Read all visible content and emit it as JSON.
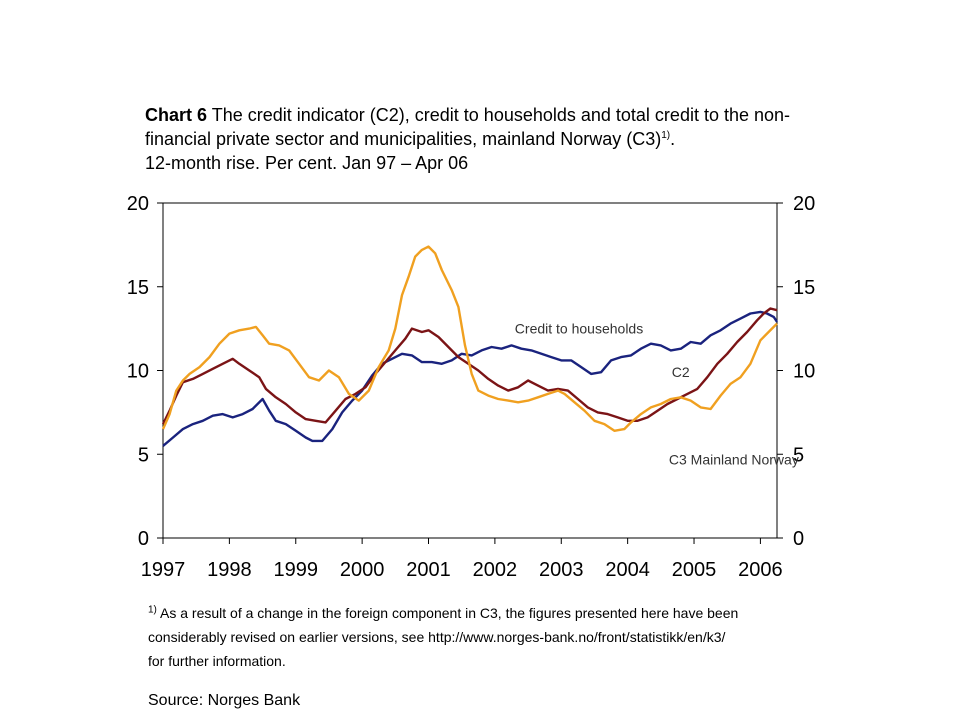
{
  "header": {
    "chart_number": "Chart 6",
    "title_line1": "The credit indicator (C2), credit to households and total credit to the non-",
    "title_line2": "financial private sector and municipalities, mainland Norway (C3)",
    "title_line2_sup": "1)",
    "title_line2_end": ".",
    "subtitle": "12-month rise. Per cent.  Jan 97 – Apr 06"
  },
  "footnote": {
    "marker": "1)",
    "line1": " As a result of a change in the foreign component in C3, the figures presented here have been",
    "line2": "considerably revised on earlier versions, see http://www.norges-bank.no/front/statistikk/en/k3/",
    "line3": "for further information."
  },
  "source": "Source: Norges Bank",
  "colors": {
    "households": "#1a237e",
    "c2": "#7b1416",
    "c3": "#f0a020"
  },
  "chart_data": {
    "type": "line",
    "xlabel": "",
    "ylabel": "",
    "xlim": [
      1997.0,
      2006.25
    ],
    "ylim": [
      0,
      20
    ],
    "x_ticks": [
      "1997",
      "1998",
      "1999",
      "2000",
      "2001",
      "2002",
      "2003",
      "2004",
      "2005",
      "2006"
    ],
    "y_ticks_left": [
      "0",
      "5",
      "10",
      "15",
      "20"
    ],
    "y_ticks_right": [
      "0",
      "5",
      "10",
      "15",
      "20"
    ],
    "grid": false,
    "legend": "inline labels",
    "series": [
      {
        "name": "Credit to households",
        "color": "#1a237e",
        "points": [
          [
            1997.0,
            5.5
          ],
          [
            1997.15,
            6.0
          ],
          [
            1997.3,
            6.5
          ],
          [
            1997.45,
            6.8
          ],
          [
            1997.6,
            7.0
          ],
          [
            1997.75,
            7.3
          ],
          [
            1997.9,
            7.4
          ],
          [
            1998.05,
            7.2
          ],
          [
            1998.2,
            7.4
          ],
          [
            1998.35,
            7.7
          ],
          [
            1998.5,
            8.3
          ],
          [
            1998.6,
            7.6
          ],
          [
            1998.7,
            7.0
          ],
          [
            1998.85,
            6.8
          ],
          [
            1999.0,
            6.4
          ],
          [
            1999.15,
            6.0
          ],
          [
            1999.25,
            5.8
          ],
          [
            1999.4,
            5.8
          ],
          [
            1999.55,
            6.5
          ],
          [
            1999.7,
            7.5
          ],
          [
            1999.85,
            8.2
          ],
          [
            2000.0,
            8.8
          ],
          [
            2000.15,
            9.7
          ],
          [
            2000.3,
            10.4
          ],
          [
            2000.45,
            10.7
          ],
          [
            2000.6,
            11.0
          ],
          [
            2000.75,
            10.9
          ],
          [
            2000.9,
            10.5
          ],
          [
            2001.05,
            10.5
          ],
          [
            2001.2,
            10.4
          ],
          [
            2001.35,
            10.6
          ],
          [
            2001.5,
            11.0
          ],
          [
            2001.65,
            10.9
          ],
          [
            2001.8,
            11.2
          ],
          [
            2001.95,
            11.4
          ],
          [
            2002.1,
            11.3
          ],
          [
            2002.25,
            11.5
          ],
          [
            2002.4,
            11.3
          ],
          [
            2002.55,
            11.2
          ],
          [
            2002.7,
            11.0
          ],
          [
            2002.85,
            10.8
          ],
          [
            2003.0,
            10.6
          ],
          [
            2003.15,
            10.6
          ],
          [
            2003.3,
            10.2
          ],
          [
            2003.45,
            9.8
          ],
          [
            2003.6,
            9.9
          ],
          [
            2003.75,
            10.6
          ],
          [
            2003.9,
            10.8
          ],
          [
            2004.05,
            10.9
          ],
          [
            2004.2,
            11.3
          ],
          [
            2004.35,
            11.6
          ],
          [
            2004.5,
            11.5
          ],
          [
            2004.65,
            11.2
          ],
          [
            2004.8,
            11.3
          ],
          [
            2004.95,
            11.7
          ],
          [
            2005.1,
            11.6
          ],
          [
            2005.25,
            12.1
          ],
          [
            2005.4,
            12.4
          ],
          [
            2005.55,
            12.8
          ],
          [
            2005.7,
            13.1
          ],
          [
            2005.85,
            13.4
          ],
          [
            2006.0,
            13.5
          ],
          [
            2006.1,
            13.4
          ],
          [
            2006.2,
            13.2
          ],
          [
            2006.25,
            12.9
          ]
        ]
      },
      {
        "name": "C2",
        "color": "#7b1416",
        "points": [
          [
            1997.0,
            6.8
          ],
          [
            1997.1,
            7.6
          ],
          [
            1997.2,
            8.5
          ],
          [
            1997.3,
            9.3
          ],
          [
            1997.45,
            9.5
          ],
          [
            1997.6,
            9.8
          ],
          [
            1997.75,
            10.1
          ],
          [
            1997.9,
            10.4
          ],
          [
            1998.05,
            10.7
          ],
          [
            1998.15,
            10.4
          ],
          [
            1998.3,
            10.0
          ],
          [
            1998.45,
            9.6
          ],
          [
            1998.55,
            8.9
          ],
          [
            1998.7,
            8.4
          ],
          [
            1998.85,
            8.0
          ],
          [
            1999.0,
            7.5
          ],
          [
            1999.15,
            7.1
          ],
          [
            1999.3,
            7.0
          ],
          [
            1999.45,
            6.9
          ],
          [
            1999.6,
            7.6
          ],
          [
            1999.75,
            8.3
          ],
          [
            1999.9,
            8.6
          ],
          [
            2000.05,
            9.0
          ],
          [
            2000.2,
            9.8
          ],
          [
            2000.35,
            10.5
          ],
          [
            2000.5,
            11.2
          ],
          [
            2000.65,
            11.9
          ],
          [
            2000.75,
            12.5
          ],
          [
            2000.9,
            12.3
          ],
          [
            2001.0,
            12.4
          ],
          [
            2001.15,
            12.0
          ],
          [
            2001.3,
            11.4
          ],
          [
            2001.45,
            10.8
          ],
          [
            2001.6,
            10.4
          ],
          [
            2001.75,
            10.0
          ],
          [
            2001.9,
            9.5
          ],
          [
            2002.05,
            9.1
          ],
          [
            2002.2,
            8.8
          ],
          [
            2002.35,
            9.0
          ],
          [
            2002.5,
            9.4
          ],
          [
            2002.65,
            9.1
          ],
          [
            2002.8,
            8.8
          ],
          [
            2002.95,
            8.9
          ],
          [
            2003.1,
            8.8
          ],
          [
            2003.25,
            8.3
          ],
          [
            2003.4,
            7.8
          ],
          [
            2003.55,
            7.5
          ],
          [
            2003.7,
            7.4
          ],
          [
            2003.85,
            7.2
          ],
          [
            2004.0,
            7.0
          ],
          [
            2004.15,
            7.0
          ],
          [
            2004.3,
            7.2
          ],
          [
            2004.45,
            7.6
          ],
          [
            2004.6,
            8.0
          ],
          [
            2004.75,
            8.3
          ],
          [
            2004.9,
            8.6
          ],
          [
            2005.05,
            8.9
          ],
          [
            2005.2,
            9.6
          ],
          [
            2005.35,
            10.4
          ],
          [
            2005.5,
            11.0
          ],
          [
            2005.65,
            11.7
          ],
          [
            2005.8,
            12.3
          ],
          [
            2005.95,
            13.0
          ],
          [
            2006.05,
            13.4
          ],
          [
            2006.15,
            13.7
          ],
          [
            2006.25,
            13.6
          ]
        ]
      },
      {
        "name": "C3 Mainland Norway",
        "color": "#f0a020",
        "points": [
          [
            1997.0,
            6.5
          ],
          [
            1997.1,
            7.4
          ],
          [
            1997.2,
            8.8
          ],
          [
            1997.3,
            9.4
          ],
          [
            1997.4,
            9.8
          ],
          [
            1997.55,
            10.2
          ],
          [
            1997.7,
            10.8
          ],
          [
            1997.85,
            11.6
          ],
          [
            1998.0,
            12.2
          ],
          [
            1998.15,
            12.4
          ],
          [
            1998.3,
            12.5
          ],
          [
            1998.4,
            12.6
          ],
          [
            1998.5,
            12.1
          ],
          [
            1998.6,
            11.6
          ],
          [
            1998.75,
            11.5
          ],
          [
            1998.9,
            11.2
          ],
          [
            1999.05,
            10.4
          ],
          [
            1999.2,
            9.6
          ],
          [
            1999.35,
            9.4
          ],
          [
            1999.5,
            10.0
          ],
          [
            1999.65,
            9.6
          ],
          [
            1999.8,
            8.6
          ],
          [
            1999.95,
            8.2
          ],
          [
            2000.1,
            8.8
          ],
          [
            2000.25,
            10.2
          ],
          [
            2000.4,
            11.2
          ],
          [
            2000.5,
            12.5
          ],
          [
            2000.6,
            14.5
          ],
          [
            2000.7,
            15.6
          ],
          [
            2000.8,
            16.8
          ],
          [
            2000.9,
            17.2
          ],
          [
            2001.0,
            17.4
          ],
          [
            2001.1,
            17.0
          ],
          [
            2001.2,
            16.0
          ],
          [
            2001.35,
            14.8
          ],
          [
            2001.45,
            13.8
          ],
          [
            2001.55,
            11.5
          ],
          [
            2001.65,
            9.8
          ],
          [
            2001.75,
            8.8
          ],
          [
            2001.9,
            8.5
          ],
          [
            2002.05,
            8.3
          ],
          [
            2002.2,
            8.2
          ],
          [
            2002.35,
            8.1
          ],
          [
            2002.5,
            8.2
          ],
          [
            2002.65,
            8.4
          ],
          [
            2002.8,
            8.6
          ],
          [
            2002.95,
            8.8
          ],
          [
            2003.05,
            8.6
          ],
          [
            2003.2,
            8.1
          ],
          [
            2003.35,
            7.6
          ],
          [
            2003.5,
            7.0
          ],
          [
            2003.65,
            6.8
          ],
          [
            2003.8,
            6.4
          ],
          [
            2003.95,
            6.5
          ],
          [
            2004.05,
            6.9
          ],
          [
            2004.2,
            7.4
          ],
          [
            2004.35,
            7.8
          ],
          [
            2004.5,
            8.0
          ],
          [
            2004.65,
            8.3
          ],
          [
            2004.8,
            8.4
          ],
          [
            2004.95,
            8.2
          ],
          [
            2005.1,
            7.8
          ],
          [
            2005.25,
            7.7
          ],
          [
            2005.4,
            8.5
          ],
          [
            2005.55,
            9.2
          ],
          [
            2005.7,
            9.6
          ],
          [
            2005.85,
            10.4
          ],
          [
            2006.0,
            11.8
          ],
          [
            2006.1,
            12.2
          ],
          [
            2006.2,
            12.6
          ],
          [
            2006.25,
            12.8
          ]
        ]
      }
    ],
    "annotations": [
      "Credit to households",
      "C2",
      "C3 Mainland Norway"
    ]
  }
}
